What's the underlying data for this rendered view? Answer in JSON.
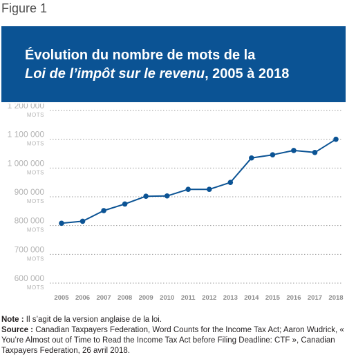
{
  "figure_label": "Figure 1",
  "title": {
    "line1": "Évolution du nombre de mots de la",
    "line2_italic": "Loi de l’impôt sur le revenu",
    "line2_rest": ", 2005 à 2018"
  },
  "chart_data": {
    "type": "line",
    "title": "Évolution du nombre de mots de la Loi de l’impôt sur le revenu, 2005 à 2018",
    "xlabel": "",
    "ylabel": "",
    "y_unit_label": "MOTS",
    "ylim": [
      600000,
      1200000
    ],
    "yticks": [
      600000,
      700000,
      800000,
      900000,
      1000000,
      1100000,
      1200000
    ],
    "ytick_labels": [
      "600 000",
      "700 000",
      "800 000",
      "900 000",
      "1 000 000",
      "1 100 000",
      "1 200 000"
    ],
    "grid": "horizontal dotted",
    "line_color": "#0b5394",
    "categories": [
      "2005",
      "2006",
      "2007",
      "2008",
      "2009",
      "2010",
      "2011",
      "2012",
      "2013",
      "2014",
      "2015",
      "2016",
      "2017",
      "2018"
    ],
    "values": [
      808000,
      815000,
      852000,
      875000,
      902000,
      903000,
      926000,
      926000,
      950000,
      1035000,
      1046000,
      1061000,
      1054000,
      1100000
    ]
  },
  "notes": {
    "note_label": "Note :",
    "note_text": " Il s’agit de la version anglaise de la loi.",
    "source_label": "Source :",
    "source_text": " Canadian Taxpayers Federation, Word Counts for the Income Tax Act; Aaron Wudrick, « You’re Almost out of Time to Read the Income Tax Act before Filing Deadline: CTF », Canadian Taxpayers Federation, 26 avril 2018."
  }
}
